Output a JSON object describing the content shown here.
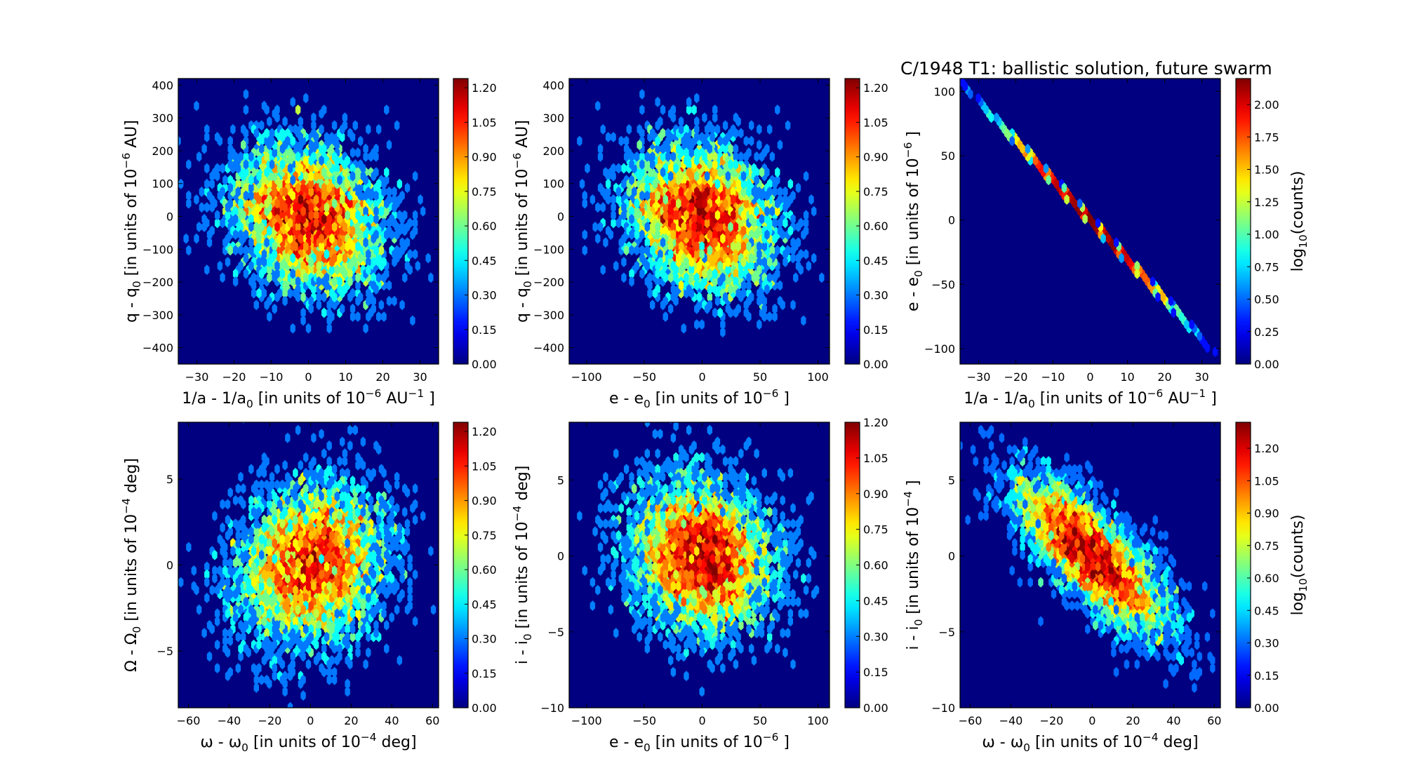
{
  "title": "C/1948 T1:  ballistic solution, future swarm",
  "chart_data": [
    {
      "type": "heatmap",
      "subtype": "hexbin",
      "panel": "top-left",
      "xlabel": [
        [
          "1/a - 1/a",
          ""
        ],
        [
          "0",
          "sub"
        ],
        [
          " [in units of 10",
          ""
        ],
        [
          "−6",
          "sup"
        ],
        [
          " AU",
          ""
        ],
        [
          "−1",
          "sup"
        ],
        [
          " ]",
          ""
        ]
      ],
      "ylabel": [
        [
          "q - q",
          ""
        ],
        [
          "0",
          "sub"
        ],
        [
          " [in units of 10",
          ""
        ],
        [
          "−6",
          "sup"
        ],
        [
          " AU]",
          ""
        ]
      ],
      "xlim": [
        -35,
        35
      ],
      "ylim": [
        -450,
        420
      ],
      "xticks": [
        -30,
        -20,
        -10,
        0,
        10,
        20,
        30
      ],
      "yticks": [
        -400,
        -300,
        -200,
        -100,
        0,
        100,
        200,
        300,
        400
      ],
      "colorbar": {
        "range": [
          0,
          1.24
        ],
        "ticks": [
          0,
          0.15,
          0.3,
          0.45,
          0.6,
          0.75,
          0.9,
          1.05,
          1.2
        ],
        "label": null
      },
      "distribution": {
        "n": 5000,
        "x_sigma": 10,
        "y_sigma": 110,
        "correlation": -0.2,
        "line_slope": null,
        "seed": 11
      }
    },
    {
      "type": "heatmap",
      "subtype": "hexbin",
      "panel": "top-middle",
      "xlabel": [
        [
          "e - e",
          ""
        ],
        [
          "0",
          "sub"
        ],
        [
          " [in units of 10",
          ""
        ],
        [
          "−6",
          "sup"
        ],
        [
          " ]",
          ""
        ]
      ],
      "ylabel": [
        [
          "q - q",
          ""
        ],
        [
          "0",
          "sub"
        ],
        [
          " [in units of 10",
          ""
        ],
        [
          "−6",
          "sup"
        ],
        [
          " AU]",
          ""
        ]
      ],
      "xlim": [
        -115,
        110
      ],
      "ylim": [
        -450,
        420
      ],
      "xticks": [
        -100,
        -50,
        0,
        50,
        100
      ],
      "yticks": [
        -400,
        -300,
        -200,
        -100,
        0,
        100,
        200,
        300,
        400
      ],
      "colorbar": {
        "range": [
          0,
          1.24
        ],
        "ticks": [
          0,
          0.15,
          0.3,
          0.45,
          0.6,
          0.75,
          0.9,
          1.05,
          1.2
        ],
        "label": null
      },
      "distribution": {
        "n": 5000,
        "x_sigma": 31,
        "y_sigma": 110,
        "correlation": -0.2,
        "line_slope": null,
        "seed": 11
      }
    },
    {
      "type": "heatmap",
      "subtype": "hexbin",
      "panel": "top-right",
      "xlabel": [
        [
          "1/a - 1/a",
          ""
        ],
        [
          "0",
          "sub"
        ],
        [
          " [in units of 10",
          ""
        ],
        [
          "−6",
          "sup"
        ],
        [
          " AU",
          ""
        ],
        [
          "−1",
          "sup"
        ],
        [
          " ]",
          ""
        ]
      ],
      "ylabel": [
        [
          "e - e",
          ""
        ],
        [
          "0",
          "sub"
        ],
        [
          " [in units of 10",
          ""
        ],
        [
          "−6",
          "sup"
        ],
        [
          " ]",
          ""
        ]
      ],
      "xlim": [
        -35,
        35
      ],
      "ylim": [
        -112,
        110
      ],
      "xticks": [
        -30,
        -20,
        -10,
        0,
        10,
        20,
        30
      ],
      "yticks": [
        -100,
        -50,
        0,
        50,
        100
      ],
      "colorbar": {
        "range": [
          0,
          2.2
        ],
        "ticks": [
          0,
          0.25,
          0.5,
          0.75,
          1.0,
          1.25,
          1.5,
          1.75,
          2.0
        ],
        "label": [
          [
            "log",
            ""
          ],
          [
            "10",
            "sub"
          ],
          [
            "(counts)",
            ""
          ]
        ]
      },
      "distribution": {
        "n": 5000,
        "x_sigma": 10,
        "y_sigma": null,
        "correlation": -1,
        "line_slope": -3.08,
        "seed": 11
      }
    },
    {
      "type": "heatmap",
      "subtype": "hexbin",
      "panel": "bottom-left",
      "xlabel": [
        [
          "ω - ω",
          ""
        ],
        [
          "0",
          "sub"
        ],
        [
          " [in units of 10",
          ""
        ],
        [
          "−4",
          "sup"
        ],
        [
          " deg]",
          ""
        ]
      ],
      "ylabel": [
        [
          "Ω - Ω",
          ""
        ],
        [
          "0",
          "sub"
        ],
        [
          " [in units of 10",
          ""
        ],
        [
          "−4",
          "sup"
        ],
        [
          " deg]",
          ""
        ]
      ],
      "xlim": [
        -65,
        63
      ],
      "ylim": [
        -8.3,
        8.3
      ],
      "xticks": [
        -60,
        -40,
        -20,
        0,
        20,
        40,
        60
      ],
      "yticks": [
        -5,
        0,
        5
      ],
      "colorbar": {
        "range": [
          0,
          1.24
        ],
        "ticks": [
          0,
          0.15,
          0.3,
          0.45,
          0.6,
          0.75,
          0.9,
          1.05,
          1.2
        ],
        "label": null
      },
      "distribution": {
        "n": 5000,
        "x_sigma": 18,
        "y_sigma": 2.3,
        "correlation": 0.15,
        "line_slope": null,
        "seed": 23
      }
    },
    {
      "type": "heatmap",
      "subtype": "hexbin",
      "panel": "bottom-middle",
      "xlabel": [
        [
          "e - e",
          ""
        ],
        [
          "0",
          "sub"
        ],
        [
          " [in units of 10",
          ""
        ],
        [
          "−6",
          "sup"
        ],
        [
          " ]",
          ""
        ]
      ],
      "ylabel": [
        [
          "i - i",
          ""
        ],
        [
          "0",
          "sub"
        ],
        [
          " [in units of 10",
          ""
        ],
        [
          "−4",
          "sup"
        ],
        [
          " deg]",
          ""
        ]
      ],
      "xlim": [
        -115,
        110
      ],
      "ylim": [
        -10,
        8.8
      ],
      "xticks": [
        -100,
        -50,
        0,
        50,
        100
      ],
      "yticks": [
        -10,
        -5,
        0,
        5
      ],
      "colorbar": {
        "range": [
          0,
          1.2
        ],
        "ticks": [
          0,
          0.15,
          0.3,
          0.45,
          0.6,
          0.75,
          0.9,
          1.05,
          1.2
        ],
        "label": null
      },
      "distribution": {
        "n": 5000,
        "x_sigma": 31,
        "y_sigma": 2.5,
        "correlation": -0.1,
        "line_slope": null,
        "seed": 37
      }
    },
    {
      "type": "heatmap",
      "subtype": "hexbin",
      "panel": "bottom-right",
      "xlabel": [
        [
          "ω - ω",
          ""
        ],
        [
          "0",
          "sub"
        ],
        [
          " [in units of 10",
          ""
        ],
        [
          "−4",
          "sup"
        ],
        [
          " deg]",
          ""
        ]
      ],
      "ylabel": [
        [
          "i - i",
          ""
        ],
        [
          "0",
          "sub"
        ],
        [
          " [in units of 10",
          ""
        ],
        [
          "−4",
          "sup"
        ],
        [
          " ]",
          ""
        ]
      ],
      "xlim": [
        -65,
        63
      ],
      "ylim": [
        -10,
        8.8
      ],
      "xticks": [
        -60,
        -40,
        -20,
        0,
        20,
        40,
        60
      ],
      "yticks": [
        -10,
        -5,
        0,
        5
      ],
      "colorbar": {
        "range": [
          0,
          1.32
        ],
        "ticks": [
          0,
          0.15,
          0.3,
          0.45,
          0.6,
          0.75,
          0.9,
          1.05,
          1.2
        ],
        "label": [
          [
            "log",
            ""
          ],
          [
            "10",
            "sub"
          ],
          [
            "(counts)",
            ""
          ]
        ]
      },
      "distribution": {
        "n": 5000,
        "x_sigma": 18,
        "y_sigma": 2.5,
        "correlation": -0.75,
        "line_slope": null,
        "seed": 41
      }
    }
  ]
}
